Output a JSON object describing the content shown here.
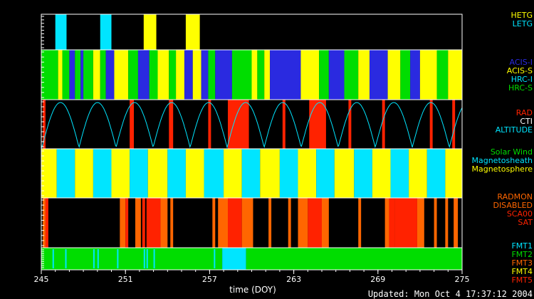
{
  "colors": {
    "cyan": "#00e5ff",
    "yellow": "#ffff00",
    "green": "#00dd00",
    "blue": "#2a2ae0",
    "red": "#ff2200",
    "orange": "#ff6600",
    "white": "#ffffff",
    "black": "#000000"
  },
  "chart_data": {
    "type": "timeline",
    "xlabel": "time (DOY)",
    "xlim": [
      245,
      275
    ],
    "xticks": [
      245,
      251,
      257,
      263,
      269,
      275
    ],
    "grid": false,
    "legend_placement": "right",
    "updated": "Updated: Mon Oct  4 17:37:12 2004",
    "panels": [
      {
        "id": "grating",
        "legend": [
          {
            "label": "HETG",
            "color": "#ffff00"
          },
          {
            "label": "LETG",
            "color": "#00e5ff"
          }
        ],
        "segments": [
          {
            "start": 246.0,
            "end": 246.8,
            "label": "LETG"
          },
          {
            "start": 249.2,
            "end": 250.0,
            "label": "LETG"
          },
          {
            "start": 252.3,
            "end": 253.2,
            "label": "HETG"
          },
          {
            "start": 255.3,
            "end": 256.3,
            "label": "HETG"
          }
        ]
      },
      {
        "id": "instrument",
        "legend": [
          {
            "label": "ACIS-I",
            "color": "#2a2ae0"
          },
          {
            "label": "ACIS-S",
            "color": "#ffff00"
          },
          {
            "label": "HRC-I",
            "color": "#00e5ff"
          },
          {
            "label": "HRC-S",
            "color": "#00dd00"
          }
        ],
        "segments": [
          {
            "start": 245.0,
            "end": 246.2,
            "label": "HRC-S"
          },
          {
            "start": 246.2,
            "end": 246.5,
            "label": "ACIS-S"
          },
          {
            "start": 246.5,
            "end": 247.0,
            "label": "HRC-S"
          },
          {
            "start": 247.0,
            "end": 247.4,
            "label": "ACIS-I"
          },
          {
            "start": 247.4,
            "end": 247.8,
            "label": "HRC-S"
          },
          {
            "start": 247.8,
            "end": 248.0,
            "label": "ACIS-I"
          },
          {
            "start": 248.0,
            "end": 248.7,
            "label": "HRC-S"
          },
          {
            "start": 248.7,
            "end": 249.2,
            "label": "ACIS-S"
          },
          {
            "start": 249.2,
            "end": 249.6,
            "label": "HRC-S"
          },
          {
            "start": 249.6,
            "end": 250.2,
            "label": "ACIS-I"
          },
          {
            "start": 250.2,
            "end": 251.2,
            "label": "ACIS-S"
          },
          {
            "start": 251.2,
            "end": 251.9,
            "label": "HRC-S"
          },
          {
            "start": 251.9,
            "end": 252.7,
            "label": "ACIS-I"
          },
          {
            "start": 252.7,
            "end": 253.3,
            "label": "HRC-S"
          },
          {
            "start": 253.3,
            "end": 254.1,
            "label": "ACIS-S"
          },
          {
            "start": 254.1,
            "end": 254.6,
            "label": "HRC-S"
          },
          {
            "start": 254.6,
            "end": 255.2,
            "label": "ACIS-S"
          },
          {
            "start": 255.2,
            "end": 255.8,
            "label": "ACIS-I"
          },
          {
            "start": 255.8,
            "end": 256.4,
            "label": "ACIS-S"
          },
          {
            "start": 256.4,
            "end": 256.9,
            "label": "ACIS-I"
          },
          {
            "start": 256.9,
            "end": 257.4,
            "label": "HRC-S"
          },
          {
            "start": 257.4,
            "end": 258.6,
            "label": "ACIS-I"
          },
          {
            "start": 258.6,
            "end": 260.0,
            "label": "HRC-S"
          },
          {
            "start": 260.0,
            "end": 260.4,
            "label": "ACIS-S"
          },
          {
            "start": 260.4,
            "end": 260.9,
            "label": "HRC-S"
          },
          {
            "start": 260.9,
            "end": 261.3,
            "label": "ACIS-S"
          },
          {
            "start": 261.3,
            "end": 263.5,
            "label": "ACIS-I"
          },
          {
            "start": 263.5,
            "end": 264.8,
            "label": "ACIS-S"
          },
          {
            "start": 264.8,
            "end": 265.5,
            "label": "HRC-S"
          },
          {
            "start": 265.5,
            "end": 266.6,
            "label": "ACIS-I"
          },
          {
            "start": 266.6,
            "end": 267.6,
            "label": "HRC-S"
          },
          {
            "start": 267.6,
            "end": 268.4,
            "label": "ACIS-S"
          },
          {
            "start": 268.4,
            "end": 269.7,
            "label": "ACIS-I"
          },
          {
            "start": 269.7,
            "end": 270.6,
            "label": "ACIS-S"
          },
          {
            "start": 270.6,
            "end": 271.3,
            "label": "HRC-S"
          },
          {
            "start": 271.3,
            "end": 272.0,
            "label": "ACIS-I"
          },
          {
            "start": 272.0,
            "end": 273.2,
            "label": "ACIS-S"
          },
          {
            "start": 273.2,
            "end": 274.0,
            "label": "HRC-S"
          },
          {
            "start": 274.0,
            "end": 275.0,
            "label": "ACIS-S"
          }
        ]
      },
      {
        "id": "radiation",
        "legend": [
          {
            "label": "RAD",
            "color": "#ff2200"
          },
          {
            "label": "CTI",
            "color": "#ffffff"
          },
          {
            "label": "ALTITUDE",
            "color": "#00e5ff"
          }
        ],
        "segments": [
          {
            "start": 245.1,
            "end": 245.3,
            "label": "RAD"
          },
          {
            "start": 251.3,
            "end": 251.6,
            "label": "RAD"
          },
          {
            "start": 254.1,
            "end": 254.4,
            "label": "RAD"
          },
          {
            "start": 256.9,
            "end": 257.1,
            "label": "RAD"
          },
          {
            "start": 258.3,
            "end": 259.8,
            "label": "RAD"
          },
          {
            "start": 262.2,
            "end": 262.4,
            "label": "RAD"
          },
          {
            "start": 264.1,
            "end": 265.3,
            "label": "RAD"
          },
          {
            "start": 266.9,
            "end": 267.1,
            "label": "RAD"
          },
          {
            "start": 269.3,
            "end": 269.5,
            "label": "RAD"
          },
          {
            "start": 272.7,
            "end": 272.9,
            "label": "RAD"
          },
          {
            "start": 274.3,
            "end": 274.5,
            "label": "RAD"
          }
        ],
        "altitude": {
          "label": "ALTITUDE",
          "period_days": 2.64,
          "perigee_times": [
            245.05,
            247.69,
            250.33,
            252.97,
            255.61,
            258.25,
            260.89,
            263.53,
            266.17,
            268.81,
            271.45,
            274.09
          ]
        }
      },
      {
        "id": "region",
        "legend": [
          {
            "label": "Solar Wind",
            "color": "#00dd00"
          },
          {
            "label": "Magnetosheath",
            "color": "#00e5ff"
          },
          {
            "label": "Magnetosphere",
            "color": "#ffff00"
          }
        ],
        "segments": [
          {
            "start": 245.0,
            "end": 246.1,
            "label": "Magnetosphere"
          },
          {
            "start": 246.1,
            "end": 247.4,
            "label": "Magnetosheath"
          },
          {
            "start": 247.4,
            "end": 248.7,
            "label": "Magnetosphere"
          },
          {
            "start": 248.7,
            "end": 250.0,
            "label": "Magnetosheath"
          },
          {
            "start": 250.0,
            "end": 251.3,
            "label": "Magnetosphere"
          },
          {
            "start": 251.3,
            "end": 252.6,
            "label": "Magnetosheath"
          },
          {
            "start": 252.6,
            "end": 254.0,
            "label": "Magnetosphere"
          },
          {
            "start": 254.0,
            "end": 255.3,
            "label": "Magnetosheath"
          },
          {
            "start": 255.3,
            "end": 256.6,
            "label": "Magnetosphere"
          },
          {
            "start": 256.6,
            "end": 258.0,
            "label": "Magnetosheath"
          },
          {
            "start": 258.0,
            "end": 259.3,
            "label": "Magnetosphere"
          },
          {
            "start": 259.3,
            "end": 260.6,
            "label": "Magnetosheath"
          },
          {
            "start": 260.6,
            "end": 262.0,
            "label": "Magnetosphere"
          },
          {
            "start": 262.0,
            "end": 263.3,
            "label": "Magnetosheath"
          },
          {
            "start": 263.3,
            "end": 264.6,
            "label": "Magnetosphere"
          },
          {
            "start": 264.6,
            "end": 265.9,
            "label": "Magnetosheath"
          },
          {
            "start": 265.9,
            "end": 267.3,
            "label": "Magnetosphere"
          },
          {
            "start": 267.3,
            "end": 268.6,
            "label": "Magnetosheath"
          },
          {
            "start": 268.6,
            "end": 269.9,
            "label": "Magnetosphere"
          },
          {
            "start": 269.9,
            "end": 271.2,
            "label": "Magnetosheath"
          },
          {
            "start": 271.2,
            "end": 272.5,
            "label": "Magnetosphere"
          },
          {
            "start": 272.5,
            "end": 273.8,
            "label": "Magnetosheath"
          },
          {
            "start": 273.8,
            "end": 275.0,
            "label": "Magnetosphere"
          }
        ]
      },
      {
        "id": "radmon",
        "legend": [
          {
            "label": "RADMON",
            "color": "#ff6600"
          },
          {
            "label": "DISABLED",
            "color": "#ff6600"
          },
          {
            "label": "SCA00",
            "color": "#ff2200"
          },
          {
            "label": "SAT",
            "color": "#ff2200"
          }
        ],
        "segments": [
          {
            "start": 245.1,
            "end": 245.3,
            "label": "RADMON"
          },
          {
            "start": 245.3,
            "end": 245.5,
            "label": "SCA00"
          },
          {
            "start": 250.6,
            "end": 251.0,
            "label": "RADMON"
          },
          {
            "start": 251.0,
            "end": 251.2,
            "label": "SCA00"
          },
          {
            "start": 251.7,
            "end": 252.1,
            "label": "RADMON"
          },
          {
            "start": 252.2,
            "end": 252.4,
            "label": "SCA00"
          },
          {
            "start": 252.5,
            "end": 253.5,
            "label": "SCA00"
          },
          {
            "start": 253.5,
            "end": 254.0,
            "label": "RADMON"
          },
          {
            "start": 254.2,
            "end": 254.4,
            "label": "RADMON"
          },
          {
            "start": 257.2,
            "end": 257.4,
            "label": "RADMON"
          },
          {
            "start": 257.6,
            "end": 258.3,
            "label": "RADMON"
          },
          {
            "start": 258.3,
            "end": 259.3,
            "label": "SCA00"
          },
          {
            "start": 259.3,
            "end": 260.1,
            "label": "RADMON"
          },
          {
            "start": 261.2,
            "end": 261.4,
            "label": "RADMON"
          },
          {
            "start": 262.6,
            "end": 262.8,
            "label": "RADMON"
          },
          {
            "start": 263.3,
            "end": 264.0,
            "label": "RADMON"
          },
          {
            "start": 264.0,
            "end": 265.0,
            "label": "SCA00"
          },
          {
            "start": 265.0,
            "end": 265.5,
            "label": "RADMON"
          },
          {
            "start": 267.6,
            "end": 267.8,
            "label": "RADMON"
          },
          {
            "start": 269.5,
            "end": 269.8,
            "label": "RADMON"
          },
          {
            "start": 269.8,
            "end": 270.2,
            "label": "SCA00"
          },
          {
            "start": 270.2,
            "end": 271.8,
            "label": "SCA00"
          },
          {
            "start": 271.8,
            "end": 272.3,
            "label": "RADMON"
          },
          {
            "start": 273.0,
            "end": 273.2,
            "label": "RADMON"
          },
          {
            "start": 273.8,
            "end": 274.0,
            "label": "RADMON"
          },
          {
            "start": 274.4,
            "end": 274.7,
            "label": "RADMON"
          }
        ]
      },
      {
        "id": "format",
        "legend": [
          {
            "label": "FMT1",
            "color": "#00e5ff"
          },
          {
            "label": "FMT2",
            "color": "#00dd00"
          },
          {
            "label": "FMT3",
            "color": "#ff6600"
          },
          {
            "label": "FMT4",
            "color": "#ffff00"
          },
          {
            "label": "FMT5",
            "color": "#ff2200"
          }
        ],
        "segments": [
          {
            "start": 245.0,
            "end": 257.9,
            "label": "FMT2"
          },
          {
            "start": 257.9,
            "end": 259.6,
            "label": "FMT1"
          },
          {
            "start": 259.6,
            "end": 275.0,
            "label": "FMT2"
          }
        ],
        "markers": [
          {
            "x": 245.8,
            "label": "FMT1"
          },
          {
            "x": 246.7,
            "label": "FMT1"
          },
          {
            "x": 248.7,
            "label": "FMT1"
          },
          {
            "x": 249.0,
            "label": "FMT1"
          },
          {
            "x": 250.4,
            "label": "FMT1"
          },
          {
            "x": 252.3,
            "label": "FMT1"
          },
          {
            "x": 252.5,
            "label": "FMT1"
          },
          {
            "x": 253.0,
            "label": "FMT1"
          },
          {
            "x": 257.3,
            "label": "FMT1"
          }
        ]
      }
    ]
  }
}
